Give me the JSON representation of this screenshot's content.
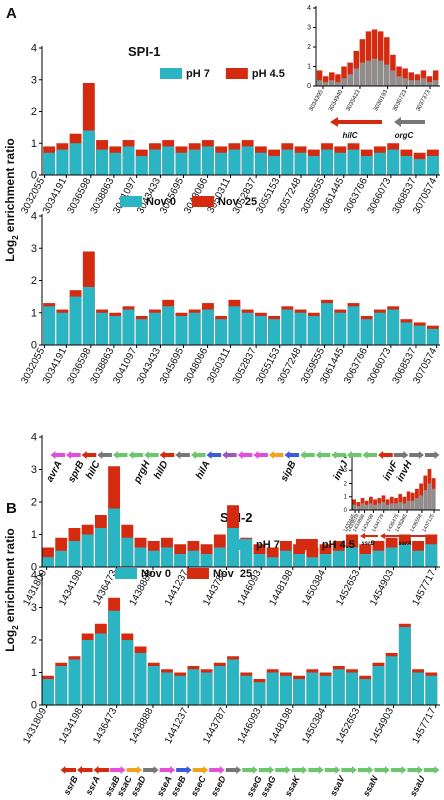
{
  "chart_data": [
    {
      "type": "bar",
      "xlim": [
        3031800,
        3070900
      ],
      "xticks": [
        3032055,
        3034191,
        3036598,
        3038863,
        3041097,
        3043433,
        3045695,
        3048066,
        3050311,
        3052837,
        3055153,
        3057248,
        3059555,
        3061445,
        3063766,
        3066073,
        3068537,
        3070574
      ],
      "ylim": [
        0,
        4
      ],
      "yticks": [
        0,
        1,
        2,
        3,
        4
      ],
      "x": [
        3032500,
        3033800,
        3035100,
        3036400,
        3037700,
        3039000,
        3040300,
        3041600,
        3042900,
        3044200,
        3045500,
        3046800,
        3048100,
        3049400,
        3050700,
        3052000,
        3053300,
        3054600,
        3055900,
        3057200,
        3058500,
        3059800,
        3061100,
        3062400,
        3063700,
        3065000,
        3066300,
        3067600,
        3068900,
        3070200
      ],
      "series": [
        {
          "name": "pH 7",
          "color": "#2bb5c3",
          "values": [
            0.7,
            0.8,
            1.0,
            1.4,
            0.8,
            0.7,
            0.9,
            0.6,
            0.8,
            0.9,
            0.7,
            0.8,
            0.9,
            0.7,
            0.8,
            0.9,
            0.7,
            0.6,
            0.8,
            0.7,
            0.6,
            0.8,
            0.7,
            0.8,
            0.6,
            0.7,
            0.8,
            0.6,
            0.5,
            0.6
          ]
        },
        {
          "name": "pH 4.5",
          "color": "#d42a10",
          "values": [
            0.9,
            1.0,
            1.3,
            2.9,
            1.1,
            0.9,
            1.1,
            0.8,
            1.0,
            1.1,
            0.9,
            1.0,
            1.1,
            0.9,
            1.0,
            1.1,
            0.9,
            0.8,
            1.0,
            0.9,
            0.8,
            1.0,
            0.9,
            1.0,
            0.8,
            0.9,
            1.0,
            0.8,
            0.7,
            0.8
          ]
        }
      ]
    },
    {
      "type": "bar",
      "xlim": [
        3031800,
        3070900
      ],
      "xticks": [
        3032055,
        3034191,
        3036598,
        3038863,
        3041097,
        3043433,
        3045695,
        3048066,
        3050311,
        3052837,
        3055153,
        3057248,
        3059555,
        3061445,
        3063766,
        3066073,
        3068537,
        3070574
      ],
      "ylim": [
        0,
        4
      ],
      "yticks": [
        0,
        1,
        2,
        3,
        4
      ],
      "x": [
        3032500,
        3033800,
        3035100,
        3036400,
        3037700,
        3039000,
        3040300,
        3041600,
        3042900,
        3044200,
        3045500,
        3046800,
        3048100,
        3049400,
        3050700,
        3052000,
        3053300,
        3054600,
        3055900,
        3057200,
        3058500,
        3059800,
        3061100,
        3062400,
        3063700,
        3065000,
        3066300,
        3067600,
        3068900,
        3070200
      ],
      "series": [
        {
          "name": "Nov 0",
          "color": "#2bb5c3",
          "values": [
            1.2,
            1.0,
            1.5,
            1.8,
            1.0,
            0.9,
            1.1,
            0.8,
            1.0,
            1.2,
            0.9,
            1.0,
            1.1,
            0.8,
            1.2,
            1.0,
            0.9,
            0.8,
            1.1,
            1.0,
            0.9,
            1.3,
            1.0,
            1.2,
            0.8,
            1.0,
            1.1,
            0.7,
            0.6,
            0.5
          ]
        },
        {
          "name": "Nov  25",
          "color": "#d42a10",
          "values": [
            1.3,
            1.1,
            1.7,
            2.9,
            1.1,
            1.0,
            1.2,
            0.9,
            1.1,
            1.4,
            1.0,
            1.1,
            1.3,
            0.9,
            1.4,
            1.1,
            1.0,
            0.9,
            1.2,
            1.1,
            1.0,
            1.4,
            1.1,
            1.3,
            0.9,
            1.1,
            1.2,
            0.8,
            0.7,
            0.6
          ]
        }
      ]
    },
    {
      "type": "bar",
      "xlim": [
        3034200,
        3037650
      ],
      "xticks": [
        3034395,
        3034940,
        3035423,
        3036193,
        3036723,
        3037373
      ],
      "ylim": [
        0,
        4
      ],
      "yticks": [
        0,
        1,
        2,
        3,
        4
      ],
      "x": [
        3034300,
        3034470,
        3034640,
        3034810,
        3034980,
        3035150,
        3035320,
        3035490,
        3035660,
        3035830,
        3036000,
        3036170,
        3036340,
        3036510,
        3036680,
        3036850,
        3037020,
        3037190,
        3037360,
        3037530
      ],
      "series": [
        {
          "color": "#8e8e8e",
          "values": [
            0.3,
            0.2,
            0.3,
            0.2,
            0.4,
            0.6,
            0.9,
            1.2,
            1.3,
            1.4,
            1.3,
            1.1,
            0.8,
            0.5,
            0.4,
            0.3,
            0.3,
            0.4,
            0.2,
            0.3
          ]
        },
        {
          "color": "#d42a10",
          "values": [
            0.8,
            0.5,
            0.7,
            0.6,
            1.0,
            1.2,
            1.8,
            2.4,
            2.8,
            2.9,
            2.8,
            2.5,
            1.6,
            1.0,
            0.9,
            0.7,
            0.6,
            0.8,
            0.5,
            0.8
          ]
        }
      ]
    },
    {
      "type": "bar",
      "xlim": [
        1431500,
        1458000
      ],
      "xticks": [
        1431809,
        1434198,
        1436473,
        1438888,
        1441237,
        1443787,
        1446093,
        1448198,
        1450384,
        1452653,
        1454903,
        1457717
      ],
      "ylim": [
        0,
        4
      ],
      "yticks": [
        0,
        1,
        2,
        3,
        4
      ],
      "x": [
        1431900,
        1432780,
        1433660,
        1434540,
        1435420,
        1436300,
        1437180,
        1438060,
        1438940,
        1439820,
        1440700,
        1441580,
        1442460,
        1443340,
        1444220,
        1445100,
        1445980,
        1446860,
        1447740,
        1448620,
        1449500,
        1450380,
        1451260,
        1452140,
        1453020,
        1453900,
        1454780,
        1455660,
        1456540,
        1457420
      ],
      "series": [
        {
          "name": "pH 7",
          "color": "#2bb5c3",
          "values": [
            0.3,
            0.5,
            0.8,
            1.0,
            1.2,
            1.8,
            0.9,
            0.6,
            0.5,
            0.6,
            0.4,
            0.5,
            0.4,
            0.6,
            1.2,
            0.6,
            0.4,
            0.3,
            0.5,
            0.4,
            0.3,
            0.4,
            0.5,
            0.6,
            0.4,
            0.5,
            0.6,
            0.7,
            0.5,
            0.7
          ]
        },
        {
          "name": "pH 4.5",
          "color": "#d42a10",
          "values": [
            0.6,
            0.9,
            1.2,
            1.3,
            1.6,
            3.1,
            1.3,
            0.9,
            0.8,
            0.9,
            0.7,
            0.8,
            0.7,
            1.0,
            1.9,
            0.9,
            0.7,
            0.6,
            0.8,
            0.7,
            0.6,
            0.7,
            0.8,
            1.0,
            0.7,
            0.8,
            0.9,
            1.0,
            0.8,
            1.0
          ]
        }
      ]
    },
    {
      "type": "bar",
      "xlim": [
        1431500,
        1458000
      ],
      "xticks": [
        1431809,
        1434198,
        1436473,
        1438888,
        1441237,
        1443787,
        1446093,
        1448198,
        1450384,
        1452653,
        1454903,
        1457717
      ],
      "ylim": [
        0,
        4
      ],
      "yticks": [
        0,
        1,
        2,
        3,
        4
      ],
      "x": [
        1431900,
        1432780,
        1433660,
        1434540,
        1435420,
        1436300,
        1437180,
        1438060,
        1438940,
        1439820,
        1440700,
        1441580,
        1442460,
        1443340,
        1444220,
        1445100,
        1445980,
        1446860,
        1447740,
        1448620,
        1449500,
        1450380,
        1451260,
        1452140,
        1453020,
        1453900,
        1454780,
        1455660,
        1456540,
        1457420
      ],
      "series": [
        {
          "name": "Nov 0",
          "color": "#2bb5c3",
          "values": [
            0.8,
            1.2,
            1.4,
            2.0,
            2.2,
            2.9,
            2.0,
            1.6,
            1.2,
            1.0,
            0.9,
            1.1,
            1.0,
            1.2,
            1.4,
            0.9,
            0.7,
            1.0,
            0.9,
            0.8,
            1.0,
            0.9,
            1.1,
            1.0,
            0.8,
            1.2,
            1.5,
            2.4,
            1.0,
            0.9
          ]
        },
        {
          "name": "Nov  25",
          "color": "#d42a10",
          "values": [
            0.9,
            1.3,
            1.5,
            2.2,
            2.5,
            3.3,
            2.2,
            1.8,
            1.3,
            1.1,
            1.0,
            1.2,
            1.1,
            1.3,
            1.5,
            1.0,
            0.8,
            1.1,
            1.0,
            0.9,
            1.1,
            1.0,
            1.2,
            1.1,
            0.9,
            1.3,
            1.6,
            2.5,
            1.1,
            1.0
          ]
        }
      ]
    },
    {
      "type": "bar",
      "xlim": [
        1433300,
        1437400
      ],
      "xticks": [
        1433445,
        1433619,
        1433886,
        1434299,
        1434779,
        1435475,
        1435865,
        1436558,
        1437125
      ],
      "ylim": [
        0,
        4
      ],
      "yticks": [
        0,
        1,
        2,
        3,
        4
      ],
      "x": [
        1433400,
        1433595,
        1433790,
        1433985,
        1434180,
        1434375,
        1434570,
        1434765,
        1434960,
        1435155,
        1435350,
        1435545,
        1435740,
        1435935,
        1436130,
        1436325,
        1436520,
        1436715,
        1436910,
        1437105
      ],
      "series": [
        {
          "color": "#8e8e8e",
          "values": [
            0.4,
            0.3,
            0.5,
            0.4,
            0.5,
            0.4,
            0.5,
            0.6,
            0.4,
            0.5,
            0.5,
            0.6,
            0.5,
            0.7,
            0.7,
            0.9,
            1.1,
            1.5,
            2.0,
            1.6
          ]
        },
        {
          "color": "#d42a10",
          "values": [
            0.8,
            0.6,
            0.9,
            0.7,
            1.0,
            0.8,
            0.9,
            1.1,
            0.8,
            1.0,
            0.9,
            1.2,
            1.0,
            1.4,
            1.3,
            1.6,
            2.0,
            2.6,
            3.1,
            2.4
          ]
        }
      ]
    }
  ],
  "panels": [
    {
      "letter": "A",
      "title": "SPI-1",
      "ylabel": {
        "text": "Log",
        "sub": "2",
        "rest": "enrichment ratio"
      },
      "genes": [
        "avrA",
        "sprB",
        "hilC",
        "prgH",
        "hilD",
        "hilA",
        "sipB",
        "invJ",
        "invF",
        "invH"
      ],
      "inset_genes": [
        "hilC",
        "orgC"
      ]
    },
    {
      "letter": "B",
      "title": "SPI-2",
      "ylabel": {
        "text": "Log",
        "sub": "2",
        "rest": "enrichment ratio"
      },
      "genes": [
        "ssrB",
        "ssrA",
        "ssaB",
        "ssaC",
        "ssaD",
        "sseA",
        "sseB",
        "sseC",
        "sseD",
        "sseG",
        "ssaG",
        "ssaK",
        "ssaV",
        "ssaN",
        "ssaU"
      ],
      "inset_genes": [
        "ssrB",
        "ssrA"
      ]
    }
  ]
}
